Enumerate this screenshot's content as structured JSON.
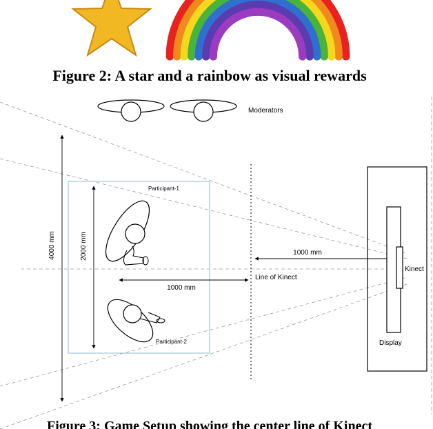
{
  "figure2": {
    "caption": "Figure 2: A star and a rainbow as visual rewards",
    "rainbow_colors": [
      "#e8231f",
      "#f08a1c",
      "#f5d81c",
      "#49b43a",
      "#2f6fd0",
      "#5a3bb0",
      "#9b3bc0"
    ],
    "star_color": "#f2b824",
    "star_edge_color": "#c98a10"
  },
  "figure3": {
    "caption": "Figure 3: Game Setup showing the center line of Kinect",
    "labels": {
      "moderators": "Moderators",
      "participant_1": "Participant-1",
      "participant_2": "Participant-2",
      "room_depth": "4000 mm",
      "play_area": "2000 mm",
      "dist_to_line": "1000 mm",
      "dist_to_kinect": "1000 mm",
      "line_of_kinect": "Line of Kinect",
      "kinect": "Kinect",
      "display": "Display"
    },
    "play_area_border_color": "#9cc8d8"
  }
}
